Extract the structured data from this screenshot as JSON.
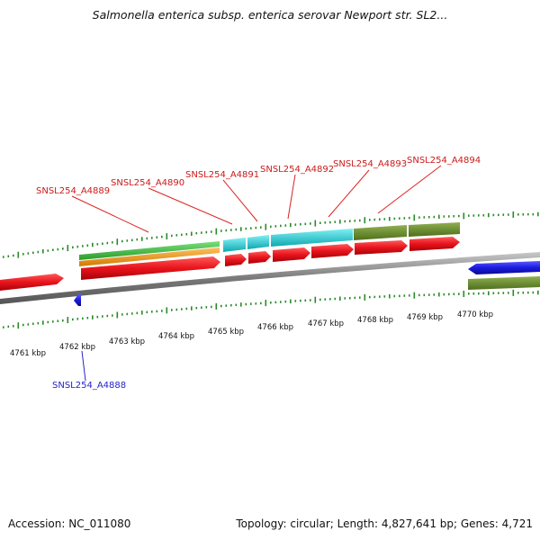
{
  "title": "Salmonella enterica subsp. enterica serovar Newport str. SL2...",
  "footer": {
    "accession": "Accession: NC_011080",
    "summary": "Topology: circular; Length: 4,827,641 bp; Genes: 4,721"
  },
  "ticks": [
    "4761 kbp",
    "4762 kbp",
    "4763 kbp",
    "4764 kbp",
    "4765 kbp",
    "4766 kbp",
    "4767 kbp",
    "4768 kbp",
    "4769 kbp",
    "4770 kbp"
  ],
  "genes_upper": [
    "SNSL254_A4889",
    "SNSL254_A4890",
    "SNSL254_A4891",
    "SNSL254_A4892",
    "SNSL254_A4893",
    "SNSL254_A4894"
  ],
  "gene_lower": "SNSL254_A4888",
  "colors": {
    "gene": "#e8141c",
    "gene_reverse": "#1a1adf",
    "green": "#3fbf3f",
    "orange": "#f59a1a",
    "cyan": "#22c7cf",
    "olive": "#6b8e2a",
    "tick": "#2a8a2a",
    "backbone": "#8a8a8a"
  }
}
